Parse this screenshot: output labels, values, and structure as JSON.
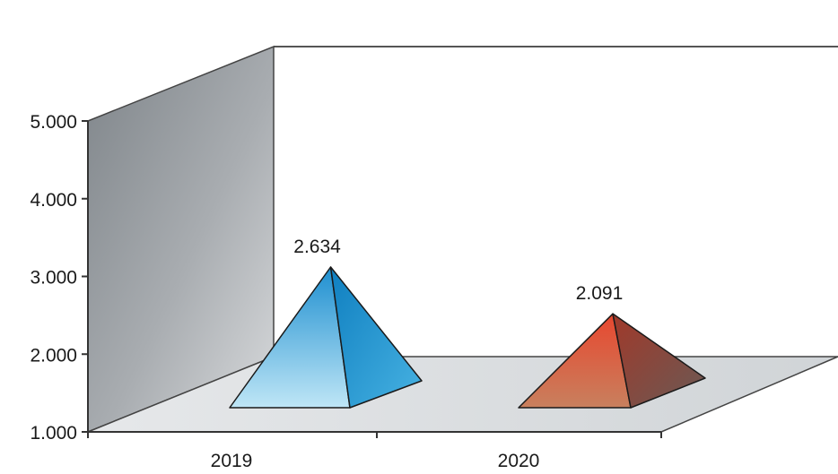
{
  "chart_data": {
    "type": "bar",
    "style": "3d-pyramid",
    "categories": [
      "2019",
      "2020"
    ],
    "values": [
      2634,
      2091
    ],
    "data_labels": [
      "2.634",
      "2.091"
    ],
    "y_ticks": [
      "1.000",
      "2.000",
      "3.000",
      "4.000",
      "5.000"
    ],
    "y_tick_values": [
      1000,
      2000,
      3000,
      4000,
      5000
    ],
    "ylim": [
      1000,
      5000
    ],
    "title": "",
    "xlabel": "",
    "ylabel": "",
    "grid": false,
    "legend": "none",
    "colors": {
      "2019": "#2a9fd8",
      "2020": "#e0553a"
    }
  }
}
